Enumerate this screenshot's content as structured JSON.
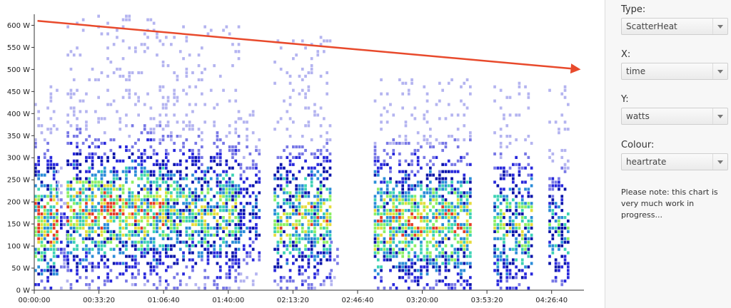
{
  "controls": {
    "type_label": "Type:",
    "type_value": "ScatterHeat",
    "x_label": "X:",
    "x_value": "time",
    "y_label": "Y:",
    "y_value": "watts",
    "colour_label": "Colour:",
    "colour_value": "heartrate",
    "note": "Please note: this chart is very much work in progress..."
  },
  "chart_data": {
    "type": "heatmap",
    "title": "",
    "xlabel": "",
    "ylabel": "",
    "x_ticks": [
      "00:00:00",
      "00:33:20",
      "01:06:40",
      "01:40:00",
      "02:13:20",
      "02:46:40",
      "03:20:00",
      "03:53:20",
      "04:26:40"
    ],
    "x_tick_seconds": [
      0,
      2000,
      4000,
      6000,
      8000,
      10000,
      12000,
      14000,
      16000
    ],
    "y_ticks": [
      "0 W",
      "50 W",
      "100 W",
      "150 W",
      "200 W",
      "250 W",
      "300 W",
      "350 W",
      "400 W",
      "450 W",
      "500 W",
      "550 W",
      "600 W"
    ],
    "y_tick_values": [
      0,
      50,
      100,
      150,
      200,
      250,
      300,
      350,
      400,
      450,
      500,
      550,
      600
    ],
    "xlim": [
      0,
      17000
    ],
    "ylim": [
      0,
      625
    ],
    "grid": false,
    "colour_scale": [
      "#b4b4f0",
      "#7878e6",
      "#2828dc",
      "#0a14aa",
      "#2a8cd8",
      "#3cd2b4",
      "#8cf064",
      "#e6dc3c",
      "#e63c28"
    ],
    "activity_blocks": [
      {
        "start": 0,
        "end": 700,
        "center": 150,
        "spread": 95,
        "max": 460,
        "intensity": 0.85
      },
      {
        "start": 700,
        "end": 1000,
        "center": 120,
        "spread": 60,
        "max": 300,
        "intensity": 0.35
      },
      {
        "start": 1000,
        "end": 4100,
        "center": 175,
        "spread": 95,
        "max": 620,
        "intensity": 0.8
      },
      {
        "start": 4100,
        "end": 6350,
        "center": 170,
        "spread": 95,
        "max": 600,
        "intensity": 0.7
      },
      {
        "start": 6350,
        "end": 7000,
        "center": 170,
        "spread": 85,
        "max": 440,
        "intensity": 0.45
      },
      {
        "start": 7400,
        "end": 9150,
        "center": 160,
        "spread": 90,
        "max": 570,
        "intensity": 0.75
      },
      {
        "start": 9150,
        "end": 9400,
        "center": 70,
        "spread": 40,
        "max": 110,
        "intensity": 0.2
      },
      {
        "start": 10500,
        "end": 13500,
        "center": 145,
        "spread": 95,
        "max": 480,
        "intensity": 0.8
      },
      {
        "start": 14200,
        "end": 15400,
        "center": 140,
        "spread": 95,
        "max": 470,
        "intensity": 0.7
      },
      {
        "start": 15900,
        "end": 16500,
        "center": 130,
        "spread": 80,
        "max": 460,
        "intensity": 0.6
      }
    ],
    "annotation_arrow": {
      "from": [
        100,
        610
      ],
      "to": [
        16900,
        500
      ],
      "color": "#e84a2c"
    }
  }
}
